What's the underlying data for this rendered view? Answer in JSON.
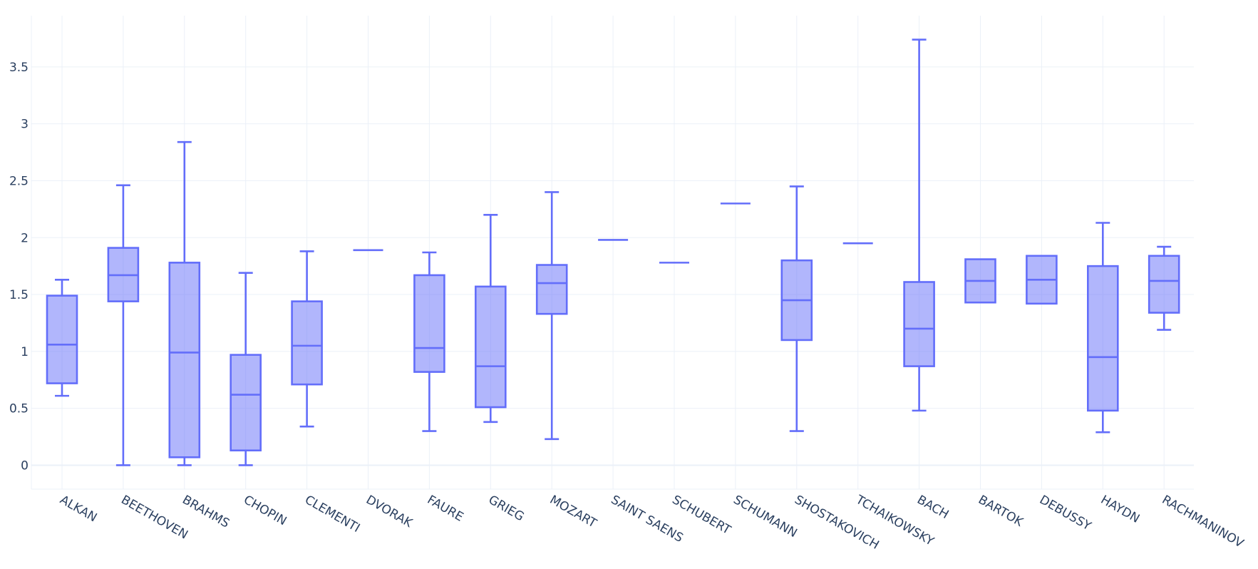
{
  "chart_data": {
    "type": "box",
    "title": "",
    "xlabel": "",
    "ylabel": "",
    "ylim": [
      -0.21,
      3.95
    ],
    "y_ticks": [
      0,
      0.5,
      1,
      1.5,
      2,
      2.5,
      3,
      3.5
    ],
    "y_tick_labels": [
      "0",
      "0.5",
      "1",
      "1.5",
      "2",
      "2.5",
      "3",
      "3.5"
    ],
    "grid": true,
    "color": "#636efa",
    "fill_color": "rgba(99,110,250,0.5)",
    "categories": [
      "ALKAN",
      "BEETHOVEN",
      "BRAHMS",
      "CHOPIN",
      "CLEMENTI",
      "DVORAK",
      "FAURE",
      "GRIEG",
      "MOZART",
      "SAINT SAENS",
      "SCHUBERT",
      "SCHUMANN",
      "SHOSTAKOVICH",
      "TCHAIKOWSKY",
      "BACH",
      "BARTOK",
      "DEBUSSY",
      "HAYDN",
      "RACHMANINOV"
    ],
    "boxes": [
      {
        "min": 0.61,
        "q1": 0.72,
        "median": 1.06,
        "q3": 1.49,
        "max": 1.63
      },
      {
        "min": 0.0,
        "q1": 1.44,
        "median": 1.67,
        "q3": 1.91,
        "max": 2.46
      },
      {
        "min": 0.0,
        "q1": 0.07,
        "median": 0.99,
        "q3": 1.78,
        "max": 2.84
      },
      {
        "min": 0.0,
        "q1": 0.13,
        "median": 0.62,
        "q3": 0.97,
        "max": 1.69
      },
      {
        "min": 0.34,
        "q1": 0.71,
        "median": 1.05,
        "q3": 1.44,
        "max": 1.88
      },
      {
        "min": 1.89,
        "q1": 1.89,
        "median": 1.89,
        "q3": 1.89,
        "max": 1.89
      },
      {
        "min": 0.3,
        "q1": 0.82,
        "median": 1.03,
        "q3": 1.67,
        "max": 1.87
      },
      {
        "min": 0.38,
        "q1": 0.51,
        "median": 0.87,
        "q3": 1.57,
        "max": 2.2
      },
      {
        "min": 0.23,
        "q1": 1.33,
        "median": 1.6,
        "q3": 1.76,
        "max": 2.4
      },
      {
        "min": 1.98,
        "q1": 1.98,
        "median": 1.98,
        "q3": 1.98,
        "max": 1.98
      },
      {
        "min": 1.78,
        "q1": 1.78,
        "median": 1.78,
        "q3": 1.78,
        "max": 1.78
      },
      {
        "min": 2.3,
        "q1": 2.3,
        "median": 2.3,
        "q3": 2.3,
        "max": 2.3
      },
      {
        "min": 0.3,
        "q1": 1.1,
        "median": 1.45,
        "q3": 1.8,
        "max": 2.45
      },
      {
        "min": 1.95,
        "q1": 1.95,
        "median": 1.95,
        "q3": 1.95,
        "max": 1.95
      },
      {
        "min": 0.48,
        "q1": 0.87,
        "median": 1.2,
        "q3": 1.61,
        "max": 3.74
      },
      {
        "min": 1.43,
        "q1": 1.43,
        "median": 1.62,
        "q3": 1.81,
        "max": 1.81
      },
      {
        "min": 1.42,
        "q1": 1.42,
        "median": 1.63,
        "q3": 1.84,
        "max": 1.84
      },
      {
        "min": 0.29,
        "q1": 0.48,
        "median": 0.95,
        "q3": 1.75,
        "max": 2.13
      },
      {
        "min": 1.19,
        "q1": 1.34,
        "median": 1.62,
        "q3": 1.84,
        "max": 1.92
      }
    ]
  }
}
